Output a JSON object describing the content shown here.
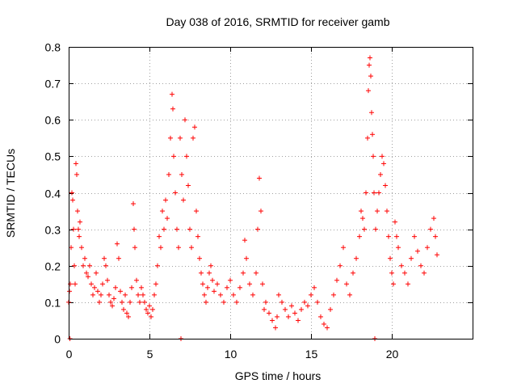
{
  "chart_data": {
    "type": "scatter",
    "title": "Day 038 of 2016, SRMTID for receiver gamb",
    "xlabel": "GPS time / hours",
    "ylabel": "SRMTID / TECUs",
    "xlim": [
      0,
      25
    ],
    "ylim": [
      0,
      0.8
    ],
    "xticks": [
      0,
      5,
      10,
      15,
      20
    ],
    "xtick_labels": [
      "0",
      "5",
      "10",
      "15",
      "20"
    ],
    "yticks": [
      0,
      0.1,
      0.2,
      0.3,
      0.4,
      0.5,
      0.6,
      0.7,
      0.8
    ],
    "ytick_labels": [
      "0",
      "0.1",
      "0.2",
      "0.3",
      "0.4",
      "0.5",
      "0.6",
      "0.7",
      "0.8"
    ],
    "grid": true,
    "marker": "+",
    "color": "#ff0000",
    "series": [
      {
        "name": "SRMTID",
        "points": [
          [
            0.0,
            0.1
          ],
          [
            0.05,
            0.13
          ],
          [
            0.08,
            0.0
          ],
          [
            0.1,
            0.15
          ],
          [
            0.15,
            0.25
          ],
          [
            0.2,
            0.4
          ],
          [
            0.25,
            0.38
          ],
          [
            0.3,
            0.3
          ],
          [
            0.35,
            0.2
          ],
          [
            0.4,
            0.15
          ],
          [
            0.45,
            0.48
          ],
          [
            0.5,
            0.45
          ],
          [
            0.55,
            0.35
          ],
          [
            0.6,
            0.3
          ],
          [
            0.65,
            0.28
          ],
          [
            0.7,
            0.32
          ],
          [
            0.8,
            0.25
          ],
          [
            0.9,
            0.2
          ],
          [
            1.0,
            0.22
          ],
          [
            1.1,
            0.18
          ],
          [
            1.2,
            0.17
          ],
          [
            1.3,
            0.2
          ],
          [
            1.4,
            0.15
          ],
          [
            1.5,
            0.12
          ],
          [
            1.6,
            0.14
          ],
          [
            1.7,
            0.18
          ],
          [
            1.8,
            0.13
          ],
          [
            1.9,
            0.1
          ],
          [
            2.0,
            0.12
          ],
          [
            2.1,
            0.15
          ],
          [
            2.2,
            0.22
          ],
          [
            2.3,
            0.2
          ],
          [
            2.4,
            0.16
          ],
          [
            2.5,
            0.12
          ],
          [
            2.6,
            0.1
          ],
          [
            2.7,
            0.09
          ],
          [
            2.8,
            0.11
          ],
          [
            2.9,
            0.14
          ],
          [
            3.0,
            0.26
          ],
          [
            3.1,
            0.22
          ],
          [
            3.2,
            0.13
          ],
          [
            3.3,
            0.1
          ],
          [
            3.4,
            0.08
          ],
          [
            3.5,
            0.12
          ],
          [
            3.6,
            0.07
          ],
          [
            3.7,
            0.06
          ],
          [
            3.8,
            0.1
          ],
          [
            3.9,
            0.14
          ],
          [
            4.0,
            0.37
          ],
          [
            4.05,
            0.3
          ],
          [
            4.1,
            0.25
          ],
          [
            4.2,
            0.16
          ],
          [
            4.3,
            0.12
          ],
          [
            4.4,
            0.1
          ],
          [
            4.5,
            0.14
          ],
          [
            4.6,
            0.12
          ],
          [
            4.7,
            0.1
          ],
          [
            4.8,
            0.08
          ],
          [
            4.9,
            0.07
          ],
          [
            5.0,
            0.09
          ],
          [
            5.1,
            0.06
          ],
          [
            5.2,
            0.08
          ],
          [
            5.3,
            0.12
          ],
          [
            5.4,
            0.15
          ],
          [
            5.5,
            0.2
          ],
          [
            5.6,
            0.28
          ],
          [
            5.7,
            0.25
          ],
          [
            5.8,
            0.35
          ],
          [
            5.9,
            0.3
          ],
          [
            6.0,
            0.38
          ],
          [
            6.1,
            0.33
          ],
          [
            6.2,
            0.45
          ],
          [
            6.3,
            0.55
          ],
          [
            6.4,
            0.67
          ],
          [
            6.45,
            0.63
          ],
          [
            6.5,
            0.5
          ],
          [
            6.6,
            0.4
          ],
          [
            6.7,
            0.3
          ],
          [
            6.8,
            0.25
          ],
          [
            6.9,
            0.55
          ],
          [
            6.95,
            0.0
          ],
          [
            7.0,
            0.45
          ],
          [
            7.1,
            0.38
          ],
          [
            7.2,
            0.6
          ],
          [
            7.3,
            0.5
          ],
          [
            7.4,
            0.42
          ],
          [
            7.5,
            0.3
          ],
          [
            7.6,
            0.25
          ],
          [
            7.7,
            0.55
          ],
          [
            7.8,
            0.58
          ],
          [
            7.9,
            0.35
          ],
          [
            8.0,
            0.28
          ],
          [
            8.1,
            0.22
          ],
          [
            8.2,
            0.18
          ],
          [
            8.3,
            0.15
          ],
          [
            8.4,
            0.12
          ],
          [
            8.5,
            0.1
          ],
          [
            8.6,
            0.14
          ],
          [
            8.7,
            0.18
          ],
          [
            8.8,
            0.2
          ],
          [
            8.9,
            0.16
          ],
          [
            9.0,
            0.13
          ],
          [
            9.2,
            0.15
          ],
          [
            9.4,
            0.12
          ],
          [
            9.6,
            0.1
          ],
          [
            9.8,
            0.14
          ],
          [
            10.0,
            0.16
          ],
          [
            10.2,
            0.12
          ],
          [
            10.4,
            0.1
          ],
          [
            10.6,
            0.14
          ],
          [
            10.8,
            0.18
          ],
          [
            10.9,
            0.27
          ],
          [
            11.0,
            0.22
          ],
          [
            11.2,
            0.15
          ],
          [
            11.4,
            0.12
          ],
          [
            11.6,
            0.18
          ],
          [
            11.7,
            0.3
          ],
          [
            11.8,
            0.44
          ],
          [
            11.9,
            0.35
          ],
          [
            12.0,
            0.15
          ],
          [
            12.1,
            0.08
          ],
          [
            12.2,
            0.1
          ],
          [
            12.4,
            0.07
          ],
          [
            12.6,
            0.05
          ],
          [
            12.8,
            0.03
          ],
          [
            12.9,
            0.06
          ],
          [
            13.0,
            0.12
          ],
          [
            13.2,
            0.1
          ],
          [
            13.4,
            0.08
          ],
          [
            13.6,
            0.06
          ],
          [
            13.8,
            0.09
          ],
          [
            14.0,
            0.07
          ],
          [
            14.2,
            0.05
          ],
          [
            14.4,
            0.08
          ],
          [
            14.6,
            0.1
          ],
          [
            14.8,
            0.09
          ],
          [
            15.0,
            0.12
          ],
          [
            15.2,
            0.14
          ],
          [
            15.4,
            0.1
          ],
          [
            15.6,
            0.06
          ],
          [
            15.8,
            0.04
          ],
          [
            16.0,
            0.03
          ],
          [
            16.2,
            0.08
          ],
          [
            16.4,
            0.12
          ],
          [
            16.6,
            0.16
          ],
          [
            16.8,
            0.2
          ],
          [
            17.0,
            0.25
          ],
          [
            17.2,
            0.15
          ],
          [
            17.4,
            0.12
          ],
          [
            17.6,
            0.18
          ],
          [
            17.8,
            0.22
          ],
          [
            18.0,
            0.28
          ],
          [
            18.1,
            0.35
          ],
          [
            18.2,
            0.33
          ],
          [
            18.3,
            0.3
          ],
          [
            18.4,
            0.4
          ],
          [
            18.5,
            0.55
          ],
          [
            18.55,
            0.68
          ],
          [
            18.6,
            0.75
          ],
          [
            18.65,
            0.77
          ],
          [
            18.7,
            0.72
          ],
          [
            18.75,
            0.62
          ],
          [
            18.8,
            0.56
          ],
          [
            18.85,
            0.5
          ],
          [
            18.9,
            0.4
          ],
          [
            18.95,
            0.0
          ],
          [
            19.0,
            0.3
          ],
          [
            19.1,
            0.35
          ],
          [
            19.2,
            0.4
          ],
          [
            19.3,
            0.45
          ],
          [
            19.4,
            0.5
          ],
          [
            19.5,
            0.48
          ],
          [
            19.6,
            0.42
          ],
          [
            19.7,
            0.35
          ],
          [
            19.8,
            0.28
          ],
          [
            19.9,
            0.22
          ],
          [
            20.0,
            0.18
          ],
          [
            20.1,
            0.15
          ],
          [
            20.2,
            0.32
          ],
          [
            20.3,
            0.28
          ],
          [
            20.4,
            0.25
          ],
          [
            20.6,
            0.2
          ],
          [
            20.8,
            0.18
          ],
          [
            21.0,
            0.15
          ],
          [
            21.2,
            0.22
          ],
          [
            21.4,
            0.28
          ],
          [
            21.6,
            0.24
          ],
          [
            21.8,
            0.2
          ],
          [
            22.0,
            0.18
          ],
          [
            22.2,
            0.25
          ],
          [
            22.4,
            0.3
          ],
          [
            22.6,
            0.33
          ],
          [
            22.7,
            0.28
          ],
          [
            22.8,
            0.23
          ]
        ]
      }
    ]
  }
}
